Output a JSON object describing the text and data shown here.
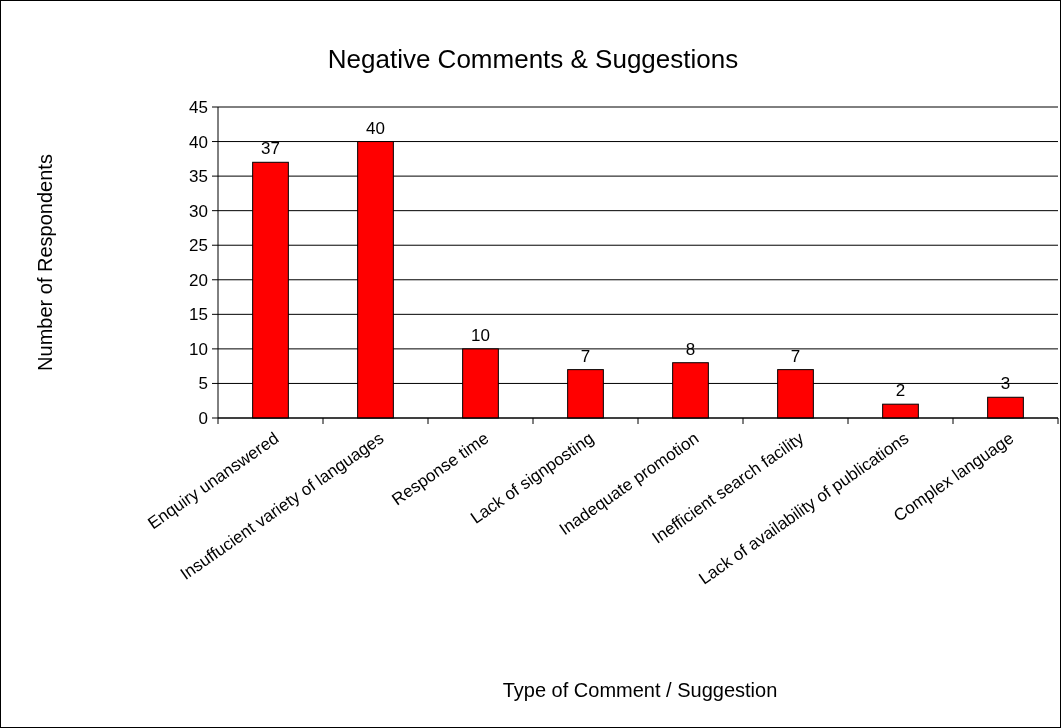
{
  "chart_data": {
    "type": "bar",
    "title": "Negative Comments & Suggestions",
    "xlabel": "Type of Comment / Suggestion",
    "ylabel": "Number of Respondents",
    "categories": [
      "Enquiry unanswered",
      "Insuffucient variety of languages",
      "Response time",
      "Lack of signposting",
      "Inadequate promotion",
      "Inefficient search facility",
      "Lack of availability of publications",
      "Complex language"
    ],
    "values": [
      37,
      40,
      10,
      7,
      8,
      7,
      2,
      3
    ],
    "color": "#ff0000",
    "data_labels": true,
    "ylim": [
      0,
      45
    ],
    "yticks": [
      0,
      5,
      10,
      15,
      20,
      25,
      30,
      35,
      40,
      45
    ],
    "grid": "y"
  }
}
